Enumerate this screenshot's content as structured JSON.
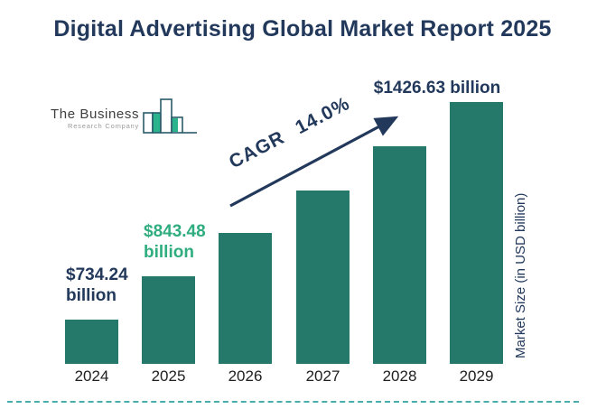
{
  "title": "Digital Advertising Global Market Report 2025",
  "logo": {
    "line1": "The Business",
    "line2": "Research Company"
  },
  "cagr": {
    "prefix": "CAGR",
    "value": "14.0%"
  },
  "colors": {
    "navy": "#22395c",
    "bar_teal": "#24796a",
    "green_accent": "#2fad7f",
    "dashed_divider": "#4aacab",
    "year_text": "#202020",
    "logo_fill": "#2cb48e",
    "logo_outline": "#2a5b68"
  },
  "chart_data": {
    "type": "bar",
    "title": "Digital Advertising Global Market Report 2025",
    "categories": [
      "2024",
      "2025",
      "2026",
      "2027",
      "2028",
      "2029"
    ],
    "values": [
      734.24,
      843.48,
      961.57,
      1096.19,
      1249.66,
      1426.63
    ],
    "estimated_indices": [
      2,
      3,
      4
    ],
    "unit": "USD billion",
    "xlabel": "",
    "ylabel": "Market Size (in USD billion)",
    "annotation": "CAGR 14.0%",
    "legend": "none",
    "grid": "off",
    "value_labels": [
      {
        "index": 0,
        "lines": [
          "$734.24",
          "billion"
        ],
        "color": "#22395c"
      },
      {
        "index": 1,
        "lines": [
          "$843.48",
          "billion"
        ],
        "color": "#2fad7f"
      },
      {
        "index": 5,
        "lines": [
          "$1426.63 billion"
        ],
        "color": "#22395c"
      }
    ]
  }
}
